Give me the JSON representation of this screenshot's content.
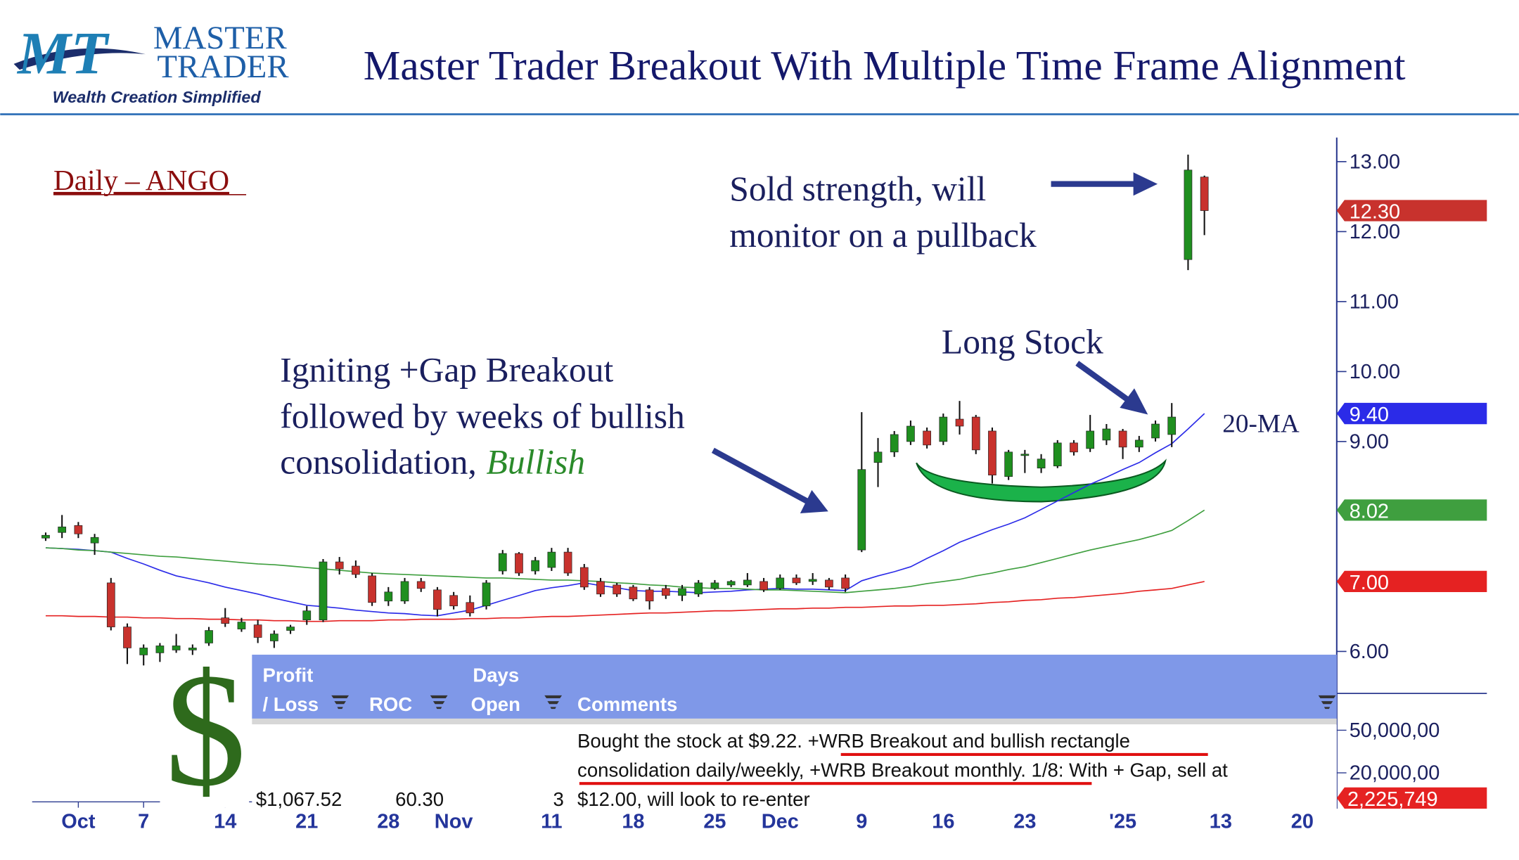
{
  "logo": {
    "mark": "MT",
    "line1": "MASTER",
    "line2": "TRADER",
    "tagline": "Wealth Creation Simplified"
  },
  "title": "Master Trader Breakout With Multiple Time Frame Alignment",
  "chart_data": {
    "type": "candlestick",
    "label": "Daily – ANGO",
    "annotations": {
      "sold": [
        "Sold strength, will",
        "monitor on a pullback"
      ],
      "long": "Long Stock",
      "igniting": [
        "Igniting +Gap Breakout",
        "followed by weeks of bullish",
        "consolidation,"
      ],
      "bullish": "Bullish",
      "ma": "20-MA"
    },
    "categories": [
      null,
      null,
      "Oct",
      null,
      null,
      null,
      "7",
      null,
      null,
      null,
      null,
      "14",
      null,
      null,
      null,
      null,
      "21",
      null,
      null,
      null,
      null,
      "28",
      null,
      null,
      null,
      "Nov",
      null,
      null,
      null,
      null,
      null,
      "11",
      null,
      null,
      null,
      null,
      "18",
      null,
      null,
      null,
      null,
      "25",
      null,
      null,
      null,
      "Dec",
      null,
      null,
      null,
      null,
      "9",
      null,
      null,
      null,
      null,
      "16",
      null,
      null,
      null,
      null,
      "23",
      null,
      null,
      null,
      null,
      null,
      "'25",
      null,
      null,
      null,
      null,
      null,
      "13",
      null,
      null,
      null,
      null,
      "20"
    ],
    "candles": [
      [
        7.62,
        7.7,
        7.58,
        7.66
      ],
      [
        7.7,
        7.95,
        7.62,
        7.78
      ],
      [
        7.8,
        7.85,
        7.62,
        7.68
      ],
      [
        7.55,
        7.68,
        7.38,
        7.63
      ],
      [
        6.98,
        7.05,
        6.3,
        6.35
      ],
      [
        6.35,
        6.4,
        5.82,
        6.05
      ],
      [
        5.95,
        6.1,
        5.8,
        6.05
      ],
      [
        5.98,
        6.12,
        5.85,
        6.08
      ],
      [
        6.02,
        6.25,
        5.98,
        6.08
      ],
      [
        6.02,
        6.1,
        5.95,
        6.05
      ],
      [
        6.12,
        6.35,
        6.08,
        6.3
      ],
      [
        6.48,
        6.62,
        6.35,
        6.4
      ],
      [
        6.32,
        6.48,
        6.28,
        6.42
      ],
      [
        6.38,
        6.45,
        6.12,
        6.2
      ],
      [
        6.15,
        6.3,
        6.05,
        6.25
      ],
      [
        6.3,
        6.38,
        6.25,
        6.35
      ],
      [
        6.45,
        6.65,
        6.38,
        6.58
      ],
      [
        6.45,
        7.32,
        6.42,
        7.28
      ],
      [
        7.28,
        7.35,
        7.1,
        7.18
      ],
      [
        7.22,
        7.3,
        7.05,
        7.1
      ],
      [
        7.08,
        7.12,
        6.65,
        6.7
      ],
      [
        6.72,
        6.92,
        6.65,
        6.85
      ],
      [
        6.72,
        7.05,
        6.68,
        7.0
      ],
      [
        7.0,
        7.05,
        6.85,
        6.9
      ],
      [
        6.88,
        6.92,
        6.5,
        6.6
      ],
      [
        6.8,
        6.85,
        6.6,
        6.65
      ],
      [
        6.7,
        6.8,
        6.5,
        6.55
      ],
      [
        6.65,
        7.02,
        6.6,
        6.98
      ],
      [
        7.15,
        7.45,
        7.1,
        7.4
      ],
      [
        7.4,
        7.42,
        7.08,
        7.12
      ],
      [
        7.15,
        7.35,
        7.1,
        7.3
      ],
      [
        7.2,
        7.48,
        7.15,
        7.42
      ],
      [
        7.42,
        7.48,
        7.08,
        7.12
      ],
      [
        7.2,
        7.25,
        6.88,
        6.92
      ],
      [
        7.0,
        7.05,
        6.78,
        6.82
      ],
      [
        6.95,
        6.98,
        6.78,
        6.82
      ],
      [
        6.92,
        6.95,
        6.72,
        6.75
      ],
      [
        6.88,
        6.92,
        6.6,
        6.72
      ],
      [
        6.9,
        6.95,
        6.75,
        6.8
      ],
      [
        6.8,
        6.95,
        6.72,
        6.9
      ],
      [
        6.82,
        7.02,
        6.78,
        6.98
      ],
      [
        6.9,
        7.02,
        6.88,
        6.98
      ],
      [
        6.95,
        7.02,
        6.92,
        7.0
      ],
      [
        6.95,
        7.12,
        6.92,
        7.02
      ],
      [
        7.0,
        7.05,
        6.85,
        6.88
      ],
      [
        6.9,
        7.1,
        6.88,
        7.05
      ],
      [
        7.05,
        7.1,
        6.95,
        6.98
      ],
      [
        7.0,
        7.12,
        6.95,
        7.03
      ],
      [
        7.02,
        7.05,
        6.88,
        6.92
      ],
      [
        7.05,
        7.1,
        6.85,
        6.9
      ],
      [
        7.45,
        9.42,
        7.42,
        8.6
      ],
      [
        8.7,
        9.05,
        8.35,
        8.85
      ],
      [
        8.85,
        9.15,
        8.78,
        9.1
      ],
      [
        9.0,
        9.3,
        8.95,
        9.22
      ],
      [
        9.15,
        9.2,
        8.9,
        8.95
      ],
      [
        9.0,
        9.4,
        8.95,
        9.35
      ],
      [
        9.32,
        9.58,
        9.1,
        9.22
      ],
      [
        9.35,
        9.38,
        8.82,
        8.88
      ],
      [
        9.15,
        9.2,
        8.4,
        8.52
      ],
      [
        8.5,
        8.88,
        8.45,
        8.85
      ],
      [
        8.8,
        8.88,
        8.55,
        8.82
      ],
      [
        8.62,
        8.82,
        8.55,
        8.75
      ],
      [
        8.65,
        9.02,
        8.62,
        8.98
      ],
      [
        8.98,
        9.02,
        8.8,
        8.85
      ],
      [
        8.9,
        9.38,
        8.85,
        9.15
      ],
      [
        9.02,
        9.25,
        8.95,
        9.18
      ],
      [
        9.15,
        9.18,
        8.75,
        8.92
      ],
      [
        8.92,
        9.08,
        8.85,
        9.02
      ],
      [
        9.05,
        9.3,
        9.0,
        9.25
      ],
      [
        9.1,
        9.55,
        8.92,
        9.35
      ],
      [
        11.6,
        13.1,
        11.45,
        12.88
      ],
      [
        12.78,
        12.8,
        11.95,
        12.3
      ],
      null,
      null,
      null,
      null,
      null,
      null
    ],
    "up_color": "#1f8f1f",
    "down_color": "#c8322d",
    "series": [
      {
        "name": "20-MA",
        "color": "#2b2be8",
        "values": [
          7.48,
          7.47,
          7.46,
          7.44,
          7.42,
          7.33,
          7.25,
          7.16,
          7.08,
          7.03,
          6.98,
          6.92,
          6.87,
          6.82,
          6.76,
          6.71,
          6.66,
          6.64,
          6.62,
          6.59,
          6.57,
          6.55,
          6.54,
          6.52,
          6.51,
          6.55,
          6.59,
          6.66,
          6.73,
          6.8,
          6.87,
          6.91,
          6.94,
          6.98,
          6.94,
          6.91,
          6.87,
          6.86,
          6.86,
          6.85,
          6.84,
          6.85,
          6.86,
          6.88,
          6.89,
          6.9,
          6.89,
          6.89,
          6.88,
          6.87,
          7.01,
          7.08,
          7.14,
          7.21,
          7.33,
          7.44,
          7.56,
          7.65,
          7.74,
          7.82,
          7.91,
          8.03,
          8.15,
          8.27,
          8.39,
          8.49,
          8.6,
          8.7,
          8.84,
          8.97,
          9.18,
          9.4,
          null,
          null,
          null,
          null,
          null,
          null
        ],
        "tag": {
          "value": 9.4,
          "label": "9.40"
        }
      },
      {
        "color": "#3f9f3f",
        "values": [
          7.48,
          7.47,
          7.45,
          7.44,
          7.42,
          7.4,
          7.38,
          7.36,
          7.35,
          7.33,
          7.31,
          7.29,
          7.27,
          7.25,
          7.24,
          7.22,
          7.2,
          7.18,
          7.16,
          7.14,
          7.12,
          7.11,
          7.1,
          7.09,
          7.08,
          7.07,
          7.06,
          7.05,
          7.05,
          7.04,
          7.03,
          7.02,
          7.02,
          7.01,
          7.0,
          6.98,
          6.97,
          6.95,
          6.94,
          6.92,
          6.91,
          6.9,
          6.9,
          6.89,
          6.88,
          6.88,
          6.87,
          6.86,
          6.85,
          6.84,
          6.86,
          6.88,
          6.9,
          6.93,
          6.97,
          7.0,
          7.03,
          7.08,
          7.12,
          7.17,
          7.21,
          7.27,
          7.33,
          7.39,
          7.45,
          7.5,
          7.55,
          7.6,
          7.66,
          7.73,
          7.87,
          8.02,
          null,
          null,
          null,
          null,
          null,
          null
        ],
        "tag": {
          "value": 8.02,
          "label": "8.02"
        }
      },
      {
        "color": "#e52222",
        "values": [
          6.51,
          6.51,
          6.5,
          6.5,
          6.49,
          6.49,
          6.48,
          6.48,
          6.47,
          6.47,
          6.46,
          6.46,
          6.45,
          6.45,
          6.44,
          6.44,
          6.43,
          6.43,
          6.44,
          6.44,
          6.44,
          6.45,
          6.45,
          6.46,
          6.46,
          6.46,
          6.47,
          6.47,
          6.48,
          6.48,
          6.49,
          6.5,
          6.5,
          6.51,
          6.52,
          6.53,
          6.54,
          6.55,
          6.55,
          6.56,
          6.57,
          6.58,
          6.58,
          6.59,
          6.6,
          6.61,
          6.61,
          6.62,
          6.62,
          6.63,
          6.63,
          6.64,
          6.65,
          6.65,
          6.66,
          6.66,
          6.67,
          6.68,
          6.7,
          6.71,
          6.73,
          6.74,
          6.76,
          6.77,
          6.79,
          6.81,
          6.83,
          6.86,
          6.88,
          6.9,
          6.95,
          7.0,
          null,
          null,
          null,
          null,
          null,
          null
        ],
        "tag": {
          "value": 7,
          "label": "7.00"
        }
      }
    ],
    "last_tag": {
      "value": 12.3,
      "label": "12.30",
      "color": "#c8322d"
    },
    "ylim": [
      5.4,
      13.4
    ],
    "yticks": [
      {
        "value": 6,
        "label": "6.00"
      },
      {
        "value": 9,
        "label": "9.00"
      },
      {
        "value": 10,
        "label": "10.00"
      },
      {
        "value": 11,
        "label": "11.00"
      },
      {
        "value": 12,
        "label": "12.00"
      },
      {
        "value": 13,
        "label": "13.00"
      }
    ],
    "volume_axis": {
      "ticks": [
        "50,000,00",
        "20,000,00"
      ],
      "tag": "2,225,749"
    }
  },
  "table": {
    "headers": [
      [
        "Profit",
        "/ Loss"
      ],
      [
        "ROC"
      ],
      [
        "Days",
        "Open"
      ],
      [
        "Comments"
      ]
    ],
    "row": [
      "$1,067.52",
      "60.30",
      "3",
      [
        "Bought the stock at $9.22.  +WRB Breakout and bullish rectangle",
        "consolidation daily/weekly, +WRB Breakout monthly. 1/8:  With + Gap, sell at",
        "$12.00, will look to re-enter"
      ]
    ],
    "icon": "$"
  }
}
